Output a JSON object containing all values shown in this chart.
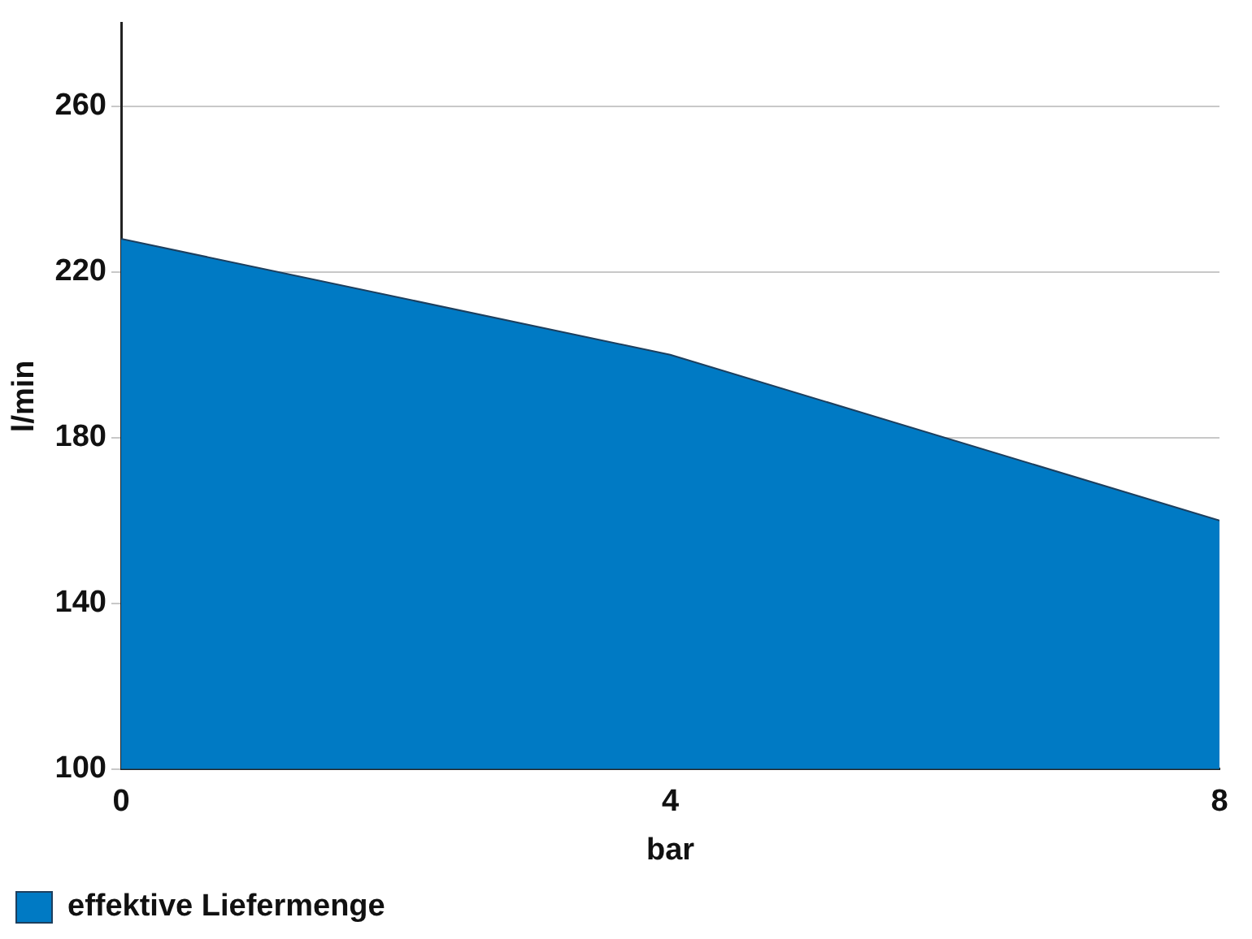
{
  "chart_data": {
    "type": "area",
    "xlabel": "bar",
    "ylabel": "l/min",
    "x": [
      0,
      4,
      8
    ],
    "series": [
      {
        "name": "effektive Liefermenge",
        "color": "#007ac4",
        "values": [
          228,
          200,
          160
        ]
      }
    ],
    "xlim": [
      0,
      8
    ],
    "xticks": [
      0,
      4,
      8
    ],
    "ylim": [
      100,
      280
    ],
    "yticks": [
      100,
      140,
      180,
      220,
      260
    ],
    "grid": "y",
    "legend": "bottom"
  }
}
